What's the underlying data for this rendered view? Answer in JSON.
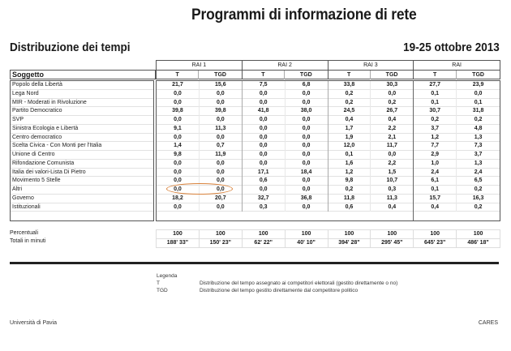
{
  "header": {
    "title": "Programmi di informazione di rete",
    "subtitle": "Distribuzione dei tempi",
    "period": "19-25 ottobre 2013"
  },
  "table": {
    "subject_header": "Soggetto",
    "networks": [
      {
        "name": "RAI 1",
        "cols": [
          "T",
          "TGD"
        ]
      },
      {
        "name": "RAI 2",
        "cols": [
          "T",
          "TGD"
        ]
      },
      {
        "name": "RAI 3",
        "cols": [
          "T",
          "TGD"
        ]
      },
      {
        "name": "RAI",
        "cols": [
          "T",
          "TGD"
        ]
      }
    ],
    "rows": [
      {
        "label": "Popolo della Libertà",
        "values": [
          "21,7",
          "15,6",
          "7,5",
          "6,8",
          "33,8",
          "30,3",
          "27,7",
          "23,9"
        ]
      },
      {
        "label": "Lega Nord",
        "values": [
          "0,0",
          "0,0",
          "0,0",
          "0,0",
          "0,2",
          "0,0",
          "0,1",
          "0,0"
        ]
      },
      {
        "label": "MIR - Moderati in Rivoluzione",
        "values": [
          "0,0",
          "0,0",
          "0,0",
          "0,0",
          "0,2",
          "0,2",
          "0,1",
          "0,1"
        ]
      },
      {
        "label": "Partito Democratico",
        "values": [
          "39,8",
          "39,8",
          "41,8",
          "38,0",
          "24,5",
          "26,7",
          "30,7",
          "31,8"
        ]
      },
      {
        "label": "SVP",
        "values": [
          "0,0",
          "0,0",
          "0,0",
          "0,0",
          "0,4",
          "0,4",
          "0,2",
          "0,2"
        ]
      },
      {
        "label": "Sinistra Ecologia e Libertà",
        "values": [
          "9,1",
          "11,3",
          "0,0",
          "0,0",
          "1,7",
          "2,2",
          "3,7",
          "4,8"
        ]
      },
      {
        "label": "Centro democratico",
        "values": [
          "0,0",
          "0,0",
          "0,0",
          "0,0",
          "1,9",
          "2,1",
          "1,2",
          "1,3"
        ]
      },
      {
        "label": "Scelta Civica - Con Monti per l'Italia",
        "values": [
          "1,4",
          "0,7",
          "0,0",
          "0,0",
          "12,0",
          "11,7",
          "7,7",
          "7,3"
        ]
      },
      {
        "label": "Unione di Centro",
        "values": [
          "9,8",
          "11,9",
          "0,0",
          "0,0",
          "0,1",
          "0,0",
          "2,9",
          "3,7"
        ]
      },
      {
        "label": "Rifondazione Comunista",
        "values": [
          "0,0",
          "0,0",
          "0,0",
          "0,0",
          "1,6",
          "2,2",
          "1,0",
          "1,3"
        ]
      },
      {
        "label": "Italia dei valori-Lista Di Pietro",
        "values": [
          "0,0",
          "0,0",
          "17,1",
          "18,4",
          "1,2",
          "1,5",
          "2,4",
          "2,4"
        ]
      },
      {
        "label": "Movimento 5 Stelle",
        "values": [
          "0,0",
          "0,0",
          "0,6",
          "0,0",
          "9,8",
          "10,7",
          "6,1",
          "6,5"
        ]
      },
      {
        "label": "Altri",
        "values": [
          "0,0",
          "0,0",
          "0,0",
          "0,0",
          "0,2",
          "0,3",
          "0,1",
          "0,2"
        ]
      },
      {
        "label": "Governo",
        "values": [
          "18,2",
          "20,7",
          "32,7",
          "36,8",
          "11,8",
          "11,3",
          "15,7",
          "16,3"
        ]
      },
      {
        "label": "Istituzionali",
        "values": [
          "0,0",
          "0,0",
          "0,3",
          "0,0",
          "0,6",
          "0,4",
          "0,4",
          "0,2"
        ]
      }
    ],
    "totals": [
      {
        "label": "Percentuali",
        "values": [
          "100",
          "100",
          "100",
          "100",
          "100",
          "100",
          "100",
          "100"
        ]
      },
      {
        "label": "Totali in minuti",
        "values": [
          "188' 33\"",
          "150' 23\"",
          "62' 22\"",
          "40' 10\"",
          "394' 28\"",
          "295' 45\"",
          "645' 23\"",
          "486' 18\""
        ]
      }
    ],
    "highlight_color": "#d9823b"
  },
  "legend": {
    "title": "Legenda",
    "items": [
      {
        "key": "T",
        "text": "Distribuzione del tempo assegnato ai competitori elettorali (gestito direttamente o no)"
      },
      {
        "key": "TGD",
        "text": "Distribuzione del tempo gestito direttamente dal competitore politico"
      }
    ]
  },
  "footer": {
    "left": "Università di Pavia",
    "right": "CARES"
  }
}
